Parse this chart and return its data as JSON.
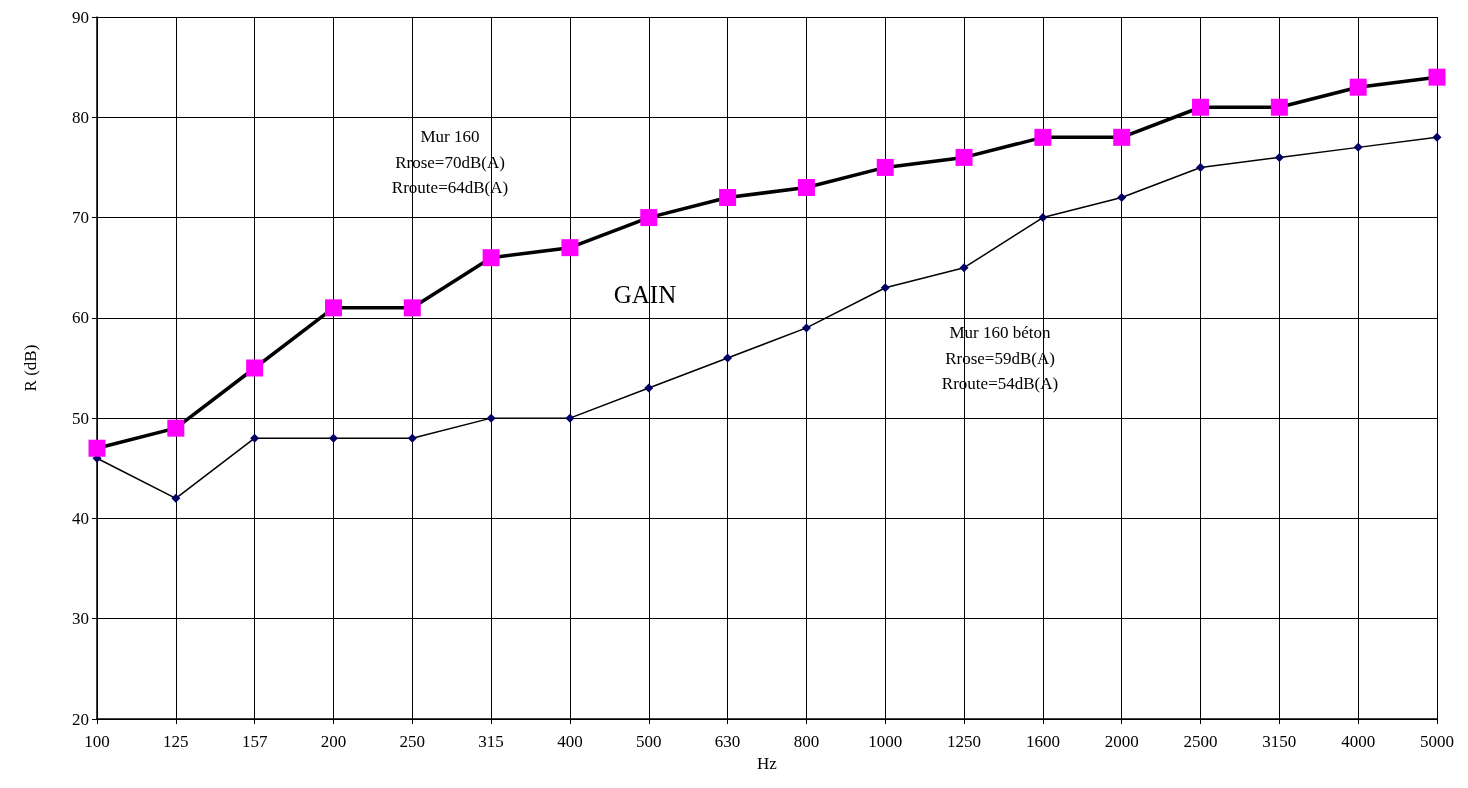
{
  "chart_data": {
    "type": "line",
    "xlabel": "Hz",
    "ylabel": "R (dB)",
    "categories": [
      "100",
      "125",
      "157",
      "200",
      "250",
      "315",
      "400",
      "500",
      "630",
      "800",
      "1000",
      "1250",
      "1600",
      "2000",
      "2500",
      "3150",
      "4000",
      "5000"
    ],
    "series": [
      {
        "color": "#ff00ff",
        "marker": "square",
        "values": [
          47,
          49,
          55,
          61,
          61,
          66,
          67,
          70,
          72,
          73,
          75,
          76,
          78,
          78,
          81,
          81,
          83,
          84
        ]
      },
      {
        "color": "#000066",
        "marker": "diamond",
        "values": [
          46,
          42,
          48,
          48,
          48,
          50,
          50,
          53,
          56,
          59,
          63,
          65,
          70,
          72,
          75,
          76,
          77,
          78
        ]
      }
    ],
    "ylim": [
      20,
      90
    ],
    "yticks": [
      20,
      30,
      40,
      50,
      60,
      70,
      80,
      90
    ],
    "grid": true,
    "line_style": "solid",
    "annotations": [
      "Mur 160\nRrose=70dB(A)\nRroute=64dB(A)",
      "GAIN",
      "Mur 160 béton\nRrose=59dB(A)\nRroute=54dB(A)"
    ]
  }
}
